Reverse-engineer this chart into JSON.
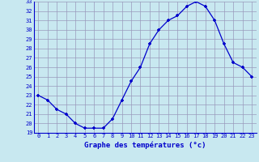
{
  "hours": [
    0,
    1,
    2,
    3,
    4,
    5,
    6,
    7,
    8,
    9,
    10,
    11,
    12,
    13,
    14,
    15,
    16,
    17,
    18,
    19,
    20,
    21,
    22,
    23
  ],
  "temps": [
    23.0,
    22.5,
    21.5,
    21.0,
    20.0,
    19.5,
    19.5,
    19.5,
    20.5,
    22.5,
    24.5,
    26.0,
    28.5,
    30.0,
    31.0,
    31.5,
    32.5,
    33.0,
    32.5,
    31.0,
    28.5,
    26.5,
    26.0,
    25.0
  ],
  "ylim": [
    19,
    33
  ],
  "yticks": [
    19,
    20,
    21,
    22,
    23,
    24,
    25,
    26,
    27,
    28,
    29,
    30,
    31,
    32,
    33
  ],
  "xticks": [
    0,
    1,
    2,
    3,
    4,
    5,
    6,
    7,
    8,
    9,
    10,
    11,
    12,
    13,
    14,
    15,
    16,
    17,
    18,
    19,
    20,
    21,
    22,
    23
  ],
  "xlabel": "Graphe des températures (°c)",
  "line_color": "#0000cc",
  "marker": "+",
  "bg_color": "#c8e8f0",
  "grid_color": "#9999bb",
  "axes_label_color": "#0000cc"
}
